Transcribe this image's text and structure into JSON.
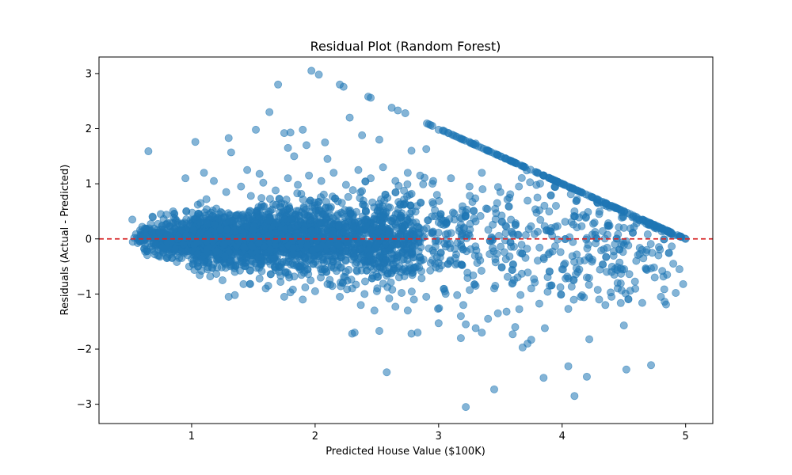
{
  "colors": {
    "points": "#1f77b4",
    "zero_line": "#d62728",
    "axes": "#000000",
    "background": "#ffffff"
  },
  "chart_data": {
    "type": "scatter",
    "title": "Residual Plot (Random Forest)",
    "xlabel": "Predicted House Value ($100K)",
    "ylabel": "Residuals (Actual - Predicted)",
    "xlim": [
      0.25,
      5.22
    ],
    "ylim": [
      -3.35,
      3.3
    ],
    "xticks": [
      1,
      2,
      3,
      4,
      5
    ],
    "yticks": [
      -3,
      -2,
      -1,
      0,
      1,
      2,
      3
    ],
    "xtick_labels": [
      "1",
      "2",
      "3",
      "4",
      "5"
    ],
    "ytick_labels": [
      "−3",
      "−2",
      "−1",
      "0",
      "1",
      "2",
      "3"
    ],
    "grid": false,
    "reference_line": {
      "y": 0,
      "style": "dashed",
      "color": "#d62728"
    },
    "upper_bound_line": {
      "description": "residual = 5.00001 - prediction (capped target)",
      "cap": 5.00001
    },
    "marker_opacity": 0.55,
    "series": [
      {
        "points": [
          [
            0.65,
            1.59
          ],
          [
            0.95,
            1.1
          ],
          [
            1.03,
            1.76
          ],
          [
            1.1,
            1.2
          ],
          [
            1.18,
            1.05
          ],
          [
            1.3,
            1.83
          ],
          [
            1.32,
            1.57
          ],
          [
            1.45,
            1.25
          ],
          [
            1.52,
            1.98
          ],
          [
            1.55,
            1.18
          ],
          [
            1.63,
            2.3
          ],
          [
            1.7,
            2.8
          ],
          [
            1.75,
            1.92
          ],
          [
            1.78,
            1.65
          ],
          [
            1.8,
            1.93
          ],
          [
            1.83,
            1.5
          ],
          [
            1.9,
            1.98
          ],
          [
            1.93,
            1.7
          ],
          [
            1.97,
            3.05
          ],
          [
            2.03,
            2.98
          ],
          [
            2.08,
            1.75
          ],
          [
            2.1,
            1.45
          ],
          [
            2.2,
            2.8
          ],
          [
            2.23,
            2.76
          ],
          [
            2.28,
            2.2
          ],
          [
            2.38,
            1.88
          ],
          [
            2.43,
            2.58
          ],
          [
            2.45,
            2.56
          ],
          [
            2.52,
            1.8
          ],
          [
            2.62,
            2.38
          ],
          [
            2.67,
            2.33
          ],
          [
            2.73,
            2.28
          ],
          [
            2.78,
            1.6
          ],
          [
            2.9,
            1.63
          ],
          [
            3.0,
            1.98
          ],
          [
            3.05,
            1.95
          ],
          [
            3.12,
            1.88
          ],
          [
            3.2,
            1.8
          ],
          [
            3.25,
            1.76
          ],
          [
            3.3,
            1.73
          ],
          [
            3.4,
            1.6
          ],
          [
            3.5,
            1.5
          ],
          [
            3.55,
            1.45
          ],
          [
            3.62,
            1.38
          ],
          [
            3.7,
            1.3
          ],
          [
            3.8,
            1.2
          ],
          [
            3.85,
            1.15
          ],
          [
            3.95,
            1.05
          ],
          [
            4.05,
            0.95
          ],
          [
            4.15,
            0.85
          ],
          [
            4.25,
            0.75
          ],
          [
            4.35,
            0.65
          ],
          [
            4.45,
            0.55
          ],
          [
            4.55,
            0.45
          ],
          [
            4.65,
            0.35
          ],
          [
            4.75,
            0.25
          ],
          [
            4.85,
            0.15
          ],
          [
            4.95,
            0.05
          ],
          [
            5.0,
            0.0
          ],
          [
            4.7,
            0.3
          ],
          [
            1.3,
            -1.05
          ],
          [
            1.35,
            -1.02
          ],
          [
            1.6,
            -0.9
          ],
          [
            1.75,
            -1.05
          ],
          [
            1.8,
            -0.97
          ],
          [
            1.9,
            -1.1
          ],
          [
            2.3,
            -1.72
          ],
          [
            2.32,
            -1.7
          ],
          [
            2.37,
            -1.2
          ],
          [
            2.48,
            -1.3
          ],
          [
            2.52,
            -1.67
          ],
          [
            2.58,
            -2.42
          ],
          [
            2.65,
            -1.23
          ],
          [
            2.75,
            -1.3
          ],
          [
            2.78,
            -1.72
          ],
          [
            2.83,
            -1.7
          ],
          [
            3.0,
            -1.53
          ],
          [
            3.18,
            -1.4
          ],
          [
            3.2,
            -1.2
          ],
          [
            3.22,
            -1.55
          ],
          [
            3.18,
            -1.8
          ],
          [
            3.22,
            -3.05
          ],
          [
            3.3,
            -1.62
          ],
          [
            3.35,
            -1.7
          ],
          [
            3.4,
            -1.45
          ],
          [
            3.45,
            -2.73
          ],
          [
            3.48,
            -1.35
          ],
          [
            3.55,
            -1.32
          ],
          [
            3.6,
            -1.73
          ],
          [
            3.62,
            -1.6
          ],
          [
            3.68,
            -1.97
          ],
          [
            3.72,
            -1.9
          ],
          [
            3.75,
            -1.83
          ],
          [
            3.85,
            -2.52
          ],
          [
            3.86,
            -1.62
          ],
          [
            4.05,
            -1.27
          ],
          [
            4.05,
            -2.31
          ],
          [
            4.1,
            -2.85
          ],
          [
            4.15,
            -1.05
          ],
          [
            4.2,
            -2.5
          ],
          [
            4.22,
            -1.82
          ],
          [
            4.35,
            -1.2
          ],
          [
            4.5,
            -1.57
          ],
          [
            4.52,
            -2.37
          ],
          [
            4.72,
            -2.29
          ],
          [
            4.75,
            -0.7
          ],
          [
            4.8,
            -1.05
          ],
          [
            4.83,
            -1.14
          ],
          [
            4.92,
            -0.98
          ],
          [
            4.98,
            -0.82
          ],
          [
            0.52,
            0.35
          ],
          [
            0.58,
            -0.05
          ],
          [
            0.6,
            0.22
          ],
          [
            0.7,
            -0.28
          ],
          [
            0.75,
            0.45
          ],
          [
            0.8,
            -0.35
          ],
          [
            0.85,
            0.5
          ],
          [
            0.88,
            -0.42
          ],
          [
            0.92,
            0.28
          ],
          [
            0.98,
            -0.5
          ],
          [
            1.05,
            0.62
          ],
          [
            1.08,
            -0.58
          ],
          [
            1.12,
            0.72
          ],
          [
            1.15,
            -0.68
          ],
          [
            1.2,
            0.55
          ],
          [
            1.25,
            -0.75
          ],
          [
            1.28,
            0.85
          ],
          [
            1.35,
            -0.6
          ],
          [
            1.4,
            0.95
          ],
          [
            1.42,
            -0.82
          ],
          [
            1.48,
            0.78
          ],
          [
            1.55,
            -0.72
          ],
          [
            1.58,
            1.02
          ],
          [
            1.62,
            -0.85
          ],
          [
            1.68,
            0.88
          ],
          [
            1.72,
            -0.78
          ],
          [
            1.78,
            1.1
          ],
          [
            1.82,
            -0.92
          ],
          [
            1.86,
            0.98
          ],
          [
            1.92,
            -0.88
          ],
          [
            1.95,
            1.15
          ],
          [
            2.0,
            -0.95
          ],
          [
            2.05,
            1.05
          ],
          [
            2.1,
            -0.82
          ],
          [
            2.15,
            1.2
          ],
          [
            2.2,
            -1.05
          ],
          [
            2.25,
            0.98
          ],
          [
            2.3,
            -0.9
          ],
          [
            2.35,
            1.25
          ],
          [
            2.4,
            -1.0
          ],
          [
            2.45,
            1.1
          ],
          [
            2.5,
            -0.95
          ],
          [
            2.55,
            1.3
          ],
          [
            2.6,
            -1.08
          ],
          [
            2.65,
            1.05
          ],
          [
            2.7,
            -0.98
          ],
          [
            2.75,
            1.2
          ],
          [
            2.8,
            -1.1
          ],
          [
            2.85,
            1.15
          ],
          [
            2.9,
            -1.05
          ],
          [
            2.95,
            1.0
          ],
          [
            3.05,
            -0.95
          ],
          [
            3.1,
            1.1
          ],
          [
            3.15,
            -1.02
          ],
          [
            3.25,
            0.95
          ],
          [
            3.3,
            -0.85
          ],
          [
            3.35,
            1.2
          ],
          [
            3.45,
            -0.9
          ],
          [
            3.5,
            0.85
          ],
          [
            3.6,
            -0.8
          ],
          [
            3.65,
            0.95
          ],
          [
            3.75,
            -0.9
          ],
          [
            3.8,
            0.75
          ],
          [
            3.9,
            -0.85
          ],
          [
            3.95,
            0.6
          ],
          [
            4.0,
            -0.55
          ],
          [
            4.1,
            0.5
          ],
          [
            4.2,
            -0.7
          ],
          [
            4.3,
            0.45
          ],
          [
            4.4,
            -0.6
          ],
          [
            4.45,
            -0.9
          ],
          [
            4.5,
            0.2
          ],
          [
            4.6,
            -0.4
          ],
          [
            4.68,
            -0.55
          ],
          [
            4.78,
            -0.3
          ],
          [
            4.85,
            -0.65
          ],
          [
            4.9,
            -0.45
          ],
          [
            4.95,
            -0.55
          ],
          [
            4.4,
            -1.05
          ],
          [
            4.3,
            -1.1
          ]
        ]
      }
    ]
  }
}
